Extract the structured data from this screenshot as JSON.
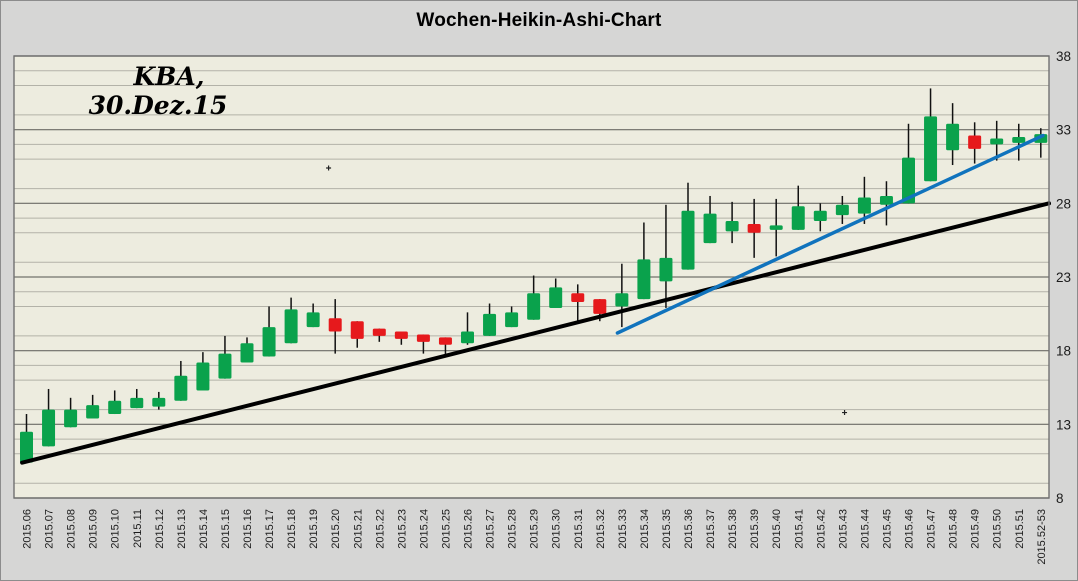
{
  "title": "Wochen-Heikin-Ashi-Chart",
  "annotation": {
    "line1": "KBA,",
    "line2": "30.Dez.15"
  },
  "colors": {
    "up": "#0AA24C",
    "down": "#E6191C",
    "wick": "#111111",
    "trend_black": "#000000",
    "trend_blue": "#1073BD",
    "plot_bg": "#EDECDF",
    "outer_bg": "#D6D6D5",
    "grid_minor": "#B3B2A8",
    "grid_major": "#73736C",
    "plot_border": "#707070"
  },
  "chart_data": {
    "type": "candlestick",
    "subtype": "heikin-ashi",
    "interval": "weekly",
    "title": "Wochen-Heikin-Ashi-Chart",
    "ylim": [
      8,
      38
    ],
    "y_ticks": [
      8,
      13,
      18,
      23,
      28,
      33,
      38
    ],
    "grid": "horizontal only; minor every 1 unit, major every 5 units",
    "legend": "none",
    "categories": [
      "2015.06",
      "2015.07",
      "2015.08",
      "2015.09",
      "2015.10",
      "2015.11",
      "2015.12",
      "2015.13",
      "2015.14",
      "2015.15",
      "2015.16",
      "2015.17",
      "2015.18",
      "2015.19",
      "2015.20",
      "2015.21",
      "2015.22",
      "2015.23",
      "2015.24",
      "2015.25",
      "2015.26",
      "2015.27",
      "2015.28",
      "2015.29",
      "2015.30",
      "2015.31",
      "2015.32",
      "2015.33",
      "2015.34",
      "2015.35",
      "2015.36",
      "2015.37",
      "2015.38",
      "2015.39",
      "2015.40",
      "2015.41",
      "2015.42",
      "2015.43",
      "2015.44",
      "2015.45",
      "2015.46",
      "2015.47",
      "2015.48",
      "2015.49",
      "2015.50",
      "2015.51",
      "2015.52-53"
    ],
    "candles": [
      {
        "w": "2015.06",
        "dir": "up",
        "o": 10.4,
        "h": 13.7,
        "l": 10.4,
        "c": 12.5
      },
      {
        "w": "2015.07",
        "dir": "up",
        "o": 11.5,
        "h": 15.4,
        "l": 11.5,
        "c": 14.0
      },
      {
        "w": "2015.08",
        "dir": "up",
        "o": 12.8,
        "h": 14.8,
        "l": 12.8,
        "c": 14.0
      },
      {
        "w": "2015.09",
        "dir": "up",
        "o": 13.4,
        "h": 15.0,
        "l": 13.4,
        "c": 14.3
      },
      {
        "w": "2015.10",
        "dir": "up",
        "o": 13.7,
        "h": 15.3,
        "l": 13.7,
        "c": 14.6
      },
      {
        "w": "2015.11",
        "dir": "up",
        "o": 14.1,
        "h": 15.4,
        "l": 14.1,
        "c": 14.8
      },
      {
        "w": "2015.12",
        "dir": "up",
        "o": 14.2,
        "h": 15.2,
        "l": 14.0,
        "c": 14.8
      },
      {
        "w": "2015.13",
        "dir": "up",
        "o": 14.6,
        "h": 17.3,
        "l": 14.6,
        "c": 16.3
      },
      {
        "w": "2015.14",
        "dir": "up",
        "o": 15.3,
        "h": 17.9,
        "l": 15.3,
        "c": 17.2
      },
      {
        "w": "2015.15",
        "dir": "up",
        "o": 16.1,
        "h": 19.0,
        "l": 16.1,
        "c": 17.8
      },
      {
        "w": "2015.16",
        "dir": "up",
        "o": 17.2,
        "h": 18.9,
        "l": 17.2,
        "c": 18.5
      },
      {
        "w": "2015.17",
        "dir": "up",
        "o": 17.6,
        "h": 21.0,
        "l": 17.6,
        "c": 19.6
      },
      {
        "w": "2015.18",
        "dir": "up",
        "o": 18.5,
        "h": 21.6,
        "l": 18.5,
        "c": 20.8
      },
      {
        "w": "2015.19",
        "dir": "up",
        "o": 19.6,
        "h": 21.2,
        "l": 19.6,
        "c": 20.6
      },
      {
        "w": "2015.20",
        "dir": "down",
        "o": 20.2,
        "h": 21.5,
        "l": 17.8,
        "c": 19.3
      },
      {
        "w": "2015.21",
        "dir": "down",
        "o": 20.0,
        "h": 20.0,
        "l": 18.2,
        "c": 18.8
      },
      {
        "w": "2015.22",
        "dir": "down",
        "o": 19.5,
        "h": 19.5,
        "l": 18.6,
        "c": 19.0
      },
      {
        "w": "2015.23",
        "dir": "down",
        "o": 19.3,
        "h": 19.3,
        "l": 18.4,
        "c": 18.8
      },
      {
        "w": "2015.24",
        "dir": "down",
        "o": 19.1,
        "h": 19.1,
        "l": 17.8,
        "c": 18.6
      },
      {
        "w": "2015.25",
        "dir": "down",
        "o": 18.9,
        "h": 18.9,
        "l": 17.6,
        "c": 18.4
      },
      {
        "w": "2015.26",
        "dir": "up",
        "o": 18.5,
        "h": 20.6,
        "l": 18.4,
        "c": 19.3
      },
      {
        "w": "2015.27",
        "dir": "up",
        "o": 19.0,
        "h": 21.2,
        "l": 19.0,
        "c": 20.5
      },
      {
        "w": "2015.28",
        "dir": "up",
        "o": 19.6,
        "h": 21.0,
        "l": 19.6,
        "c": 20.6
      },
      {
        "w": "2015.29",
        "dir": "up",
        "o": 20.1,
        "h": 23.1,
        "l": 20.1,
        "c": 21.9
      },
      {
        "w": "2015.30",
        "dir": "up",
        "o": 20.9,
        "h": 22.9,
        "l": 20.9,
        "c": 22.3
      },
      {
        "w": "2015.31",
        "dir": "down",
        "o": 21.9,
        "h": 22.5,
        "l": 19.9,
        "c": 21.3
      },
      {
        "w": "2015.32",
        "dir": "down",
        "o": 21.5,
        "h": 21.5,
        "l": 20.0,
        "c": 20.5
      },
      {
        "w": "2015.33",
        "dir": "up",
        "o": 21.0,
        "h": 23.9,
        "l": 19.6,
        "c": 21.9
      },
      {
        "w": "2015.34",
        "dir": "up",
        "o": 21.5,
        "h": 26.7,
        "l": 21.5,
        "c": 24.2
      },
      {
        "w": "2015.35",
        "dir": "up",
        "o": 22.7,
        "h": 27.9,
        "l": 20.9,
        "c": 24.3
      },
      {
        "w": "2015.36",
        "dir": "up",
        "o": 23.5,
        "h": 29.4,
        "l": 23.5,
        "c": 27.5
      },
      {
        "w": "2015.37",
        "dir": "up",
        "o": 25.3,
        "h": 28.5,
        "l": 25.3,
        "c": 27.3
      },
      {
        "w": "2015.38",
        "dir": "up",
        "o": 26.1,
        "h": 28.1,
        "l": 25.3,
        "c": 26.8
      },
      {
        "w": "2015.39",
        "dir": "down",
        "o": 26.6,
        "h": 28.3,
        "l": 24.3,
        "c": 26.0
      },
      {
        "w": "2015.40",
        "dir": "up",
        "o": 26.2,
        "h": 28.3,
        "l": 24.4,
        "c": 26.5
      },
      {
        "w": "2015.41",
        "dir": "up",
        "o": 26.2,
        "h": 29.2,
        "l": 26.2,
        "c": 27.8
      },
      {
        "w": "2015.42",
        "dir": "up",
        "o": 26.8,
        "h": 28.0,
        "l": 26.1,
        "c": 27.5
      },
      {
        "w": "2015.43",
        "dir": "up",
        "o": 27.2,
        "h": 28.5,
        "l": 26.6,
        "c": 27.9
      },
      {
        "w": "2015.44",
        "dir": "up",
        "o": 27.3,
        "h": 29.8,
        "l": 26.6,
        "c": 28.4
      },
      {
        "w": "2015.45",
        "dir": "up",
        "o": 27.9,
        "h": 29.5,
        "l": 26.5,
        "c": 28.5
      },
      {
        "w": "2015.46",
        "dir": "up",
        "o": 28.0,
        "h": 33.4,
        "l": 28.0,
        "c": 31.1
      },
      {
        "w": "2015.47",
        "dir": "up",
        "o": 29.5,
        "h": 35.8,
        "l": 29.5,
        "c": 33.9
      },
      {
        "w": "2015.48",
        "dir": "up",
        "o": 31.6,
        "h": 34.8,
        "l": 30.6,
        "c": 33.4
      },
      {
        "w": "2015.49",
        "dir": "down",
        "o": 32.6,
        "h": 33.5,
        "l": 30.7,
        "c": 31.7
      },
      {
        "w": "2015.50",
        "dir": "up",
        "o": 32.0,
        "h": 33.6,
        "l": 30.9,
        "c": 32.4
      },
      {
        "w": "2015.51",
        "dir": "up",
        "o": 32.1,
        "h": 33.4,
        "l": 30.9,
        "c": 32.5
      },
      {
        "w": "2015.52-53",
        "dir": "up",
        "o": 32.1,
        "h": 33.1,
        "l": 31.1,
        "c": 32.7
      }
    ],
    "trendlines": [
      {
        "name": "long-term-support-black",
        "color": "#000000",
        "x1_week": -0.2,
        "v1": 10.4,
        "x2_week": 46.4,
        "v2": 28.0
      },
      {
        "name": "short-term-support-blue",
        "color": "#1073BD",
        "x1_week": 26.8,
        "v1": 19.2,
        "x2_week": 46.1,
        "v2": 32.6
      }
    ],
    "stray_markers": [
      {
        "week_x": 13.7,
        "v": 30.4
      },
      {
        "week_x": 37.1,
        "v": 13.8
      }
    ]
  }
}
